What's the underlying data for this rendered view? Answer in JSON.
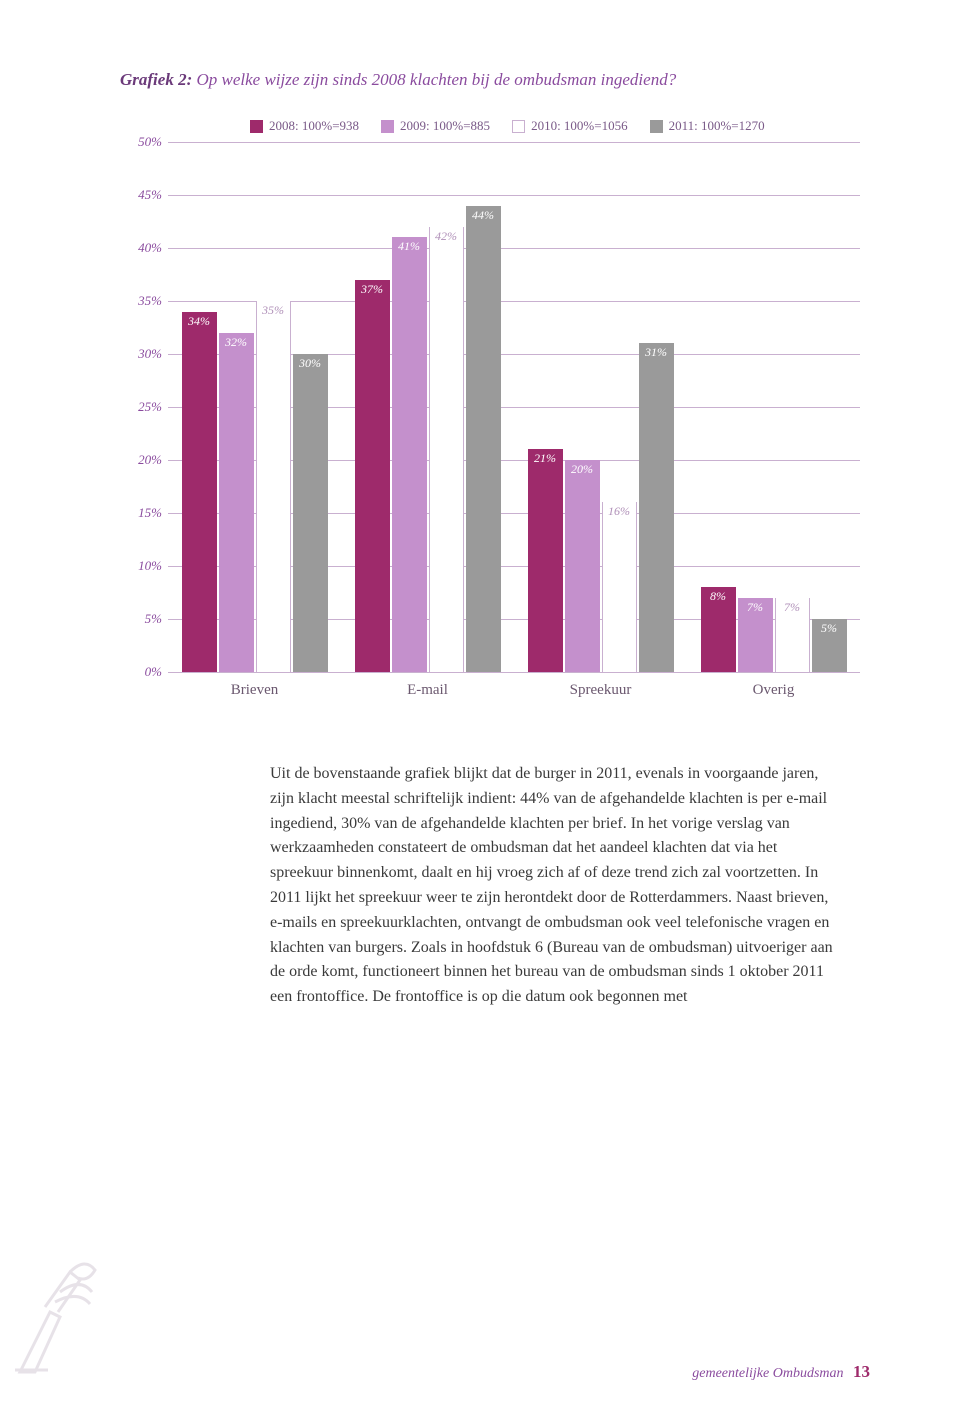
{
  "title": {
    "label": "Grafiek 2:",
    "text": "Op welke wijze zijn sinds 2008 klachten bij de ombudsman ingediend?"
  },
  "legend": [
    {
      "label": "2008: 100%=938",
      "color": "#9e2a6b"
    },
    {
      "label": "2009: 100%=885",
      "color": "#c490cc"
    },
    {
      "label": "2010: 100%=1056",
      "color": "#ffffff"
    },
    {
      "label": "2011: 100%=1270",
      "color": "#9a9a9a"
    }
  ],
  "chart": {
    "type": "bar",
    "ymax": 50,
    "ytick_step": 5,
    "grid_color": "#c9b0d0",
    "background_band": "#ece3ef",
    "axis_label_color": "#8a4b9e",
    "categories": [
      "Brieven",
      "E-mail",
      "Spreekuur",
      "Overig"
    ],
    "series_colors": [
      "#9e2a6b",
      "#c490cc",
      "#ffffff",
      "#9a9a9a"
    ],
    "data": [
      [
        34,
        32,
        35,
        30
      ],
      [
        37,
        41,
        42,
        44
      ],
      [
        21,
        20,
        16,
        31
      ],
      [
        8,
        7,
        7,
        5
      ]
    ],
    "labels": [
      [
        "34%",
        "32%",
        "35%",
        "30%"
      ],
      [
        "37%",
        "41%",
        "42%",
        "44%"
      ],
      [
        "21%",
        "20%",
        "16%",
        "31%"
      ],
      [
        "8%",
        "7%",
        "7%",
        "5%"
      ]
    ],
    "white_bar_label_color": "#b090b8"
  },
  "body_text": "Uit de bovenstaande grafiek blijkt dat de burger in 2011, evenals in voorgaande jaren, zijn klacht meestal schriftelijk indient: 44% van de afgehandelde klachten is per e-mail ingediend, 30% van de afgehandelde klachten per brief. In het vorige verslag van werkzaamheden constateert de ombudsman dat het aandeel klachten dat via het spreekuur binnenkomt, daalt en hij vroeg zich af of deze trend zich zal voortzetten. In 2011 lijkt het spreekuur weer te zijn herontdekt door de Rotterdammers. Naast brieven, e-mails en spreekuurklachten, ontvangt de ombudsman ook veel telefonische vragen en klachten van burgers. Zoals in hoofdstuk 6 (Bureau van de ombudsman) uitvoeriger aan de orde komt, functioneert binnen het bureau van de ombudsman sinds 1 oktober 2011 een frontoffice. De frontoffice is op die datum ook begonnen met",
  "footer": {
    "text": "gemeentelijke Ombudsman",
    "page": "13"
  }
}
